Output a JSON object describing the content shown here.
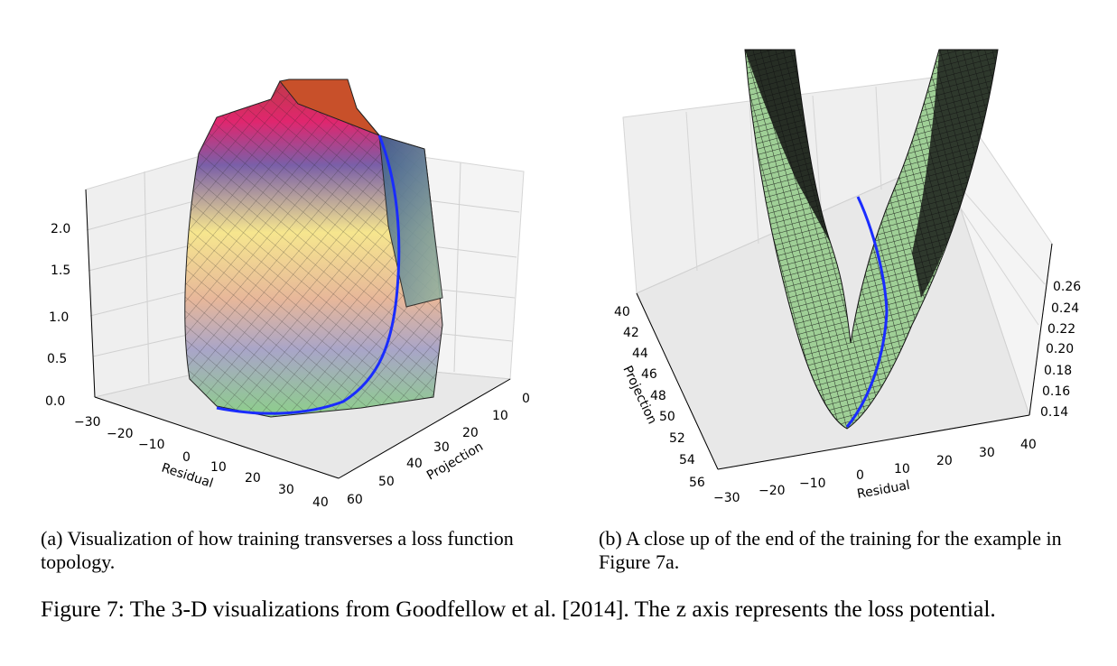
{
  "panel_a": {
    "z_ticks": [
      "0.0",
      "0.5",
      "1.0",
      "1.5",
      "2.0"
    ],
    "residual_ticks": [
      "−30",
      "−20",
      "−10",
      "0",
      "10",
      "20",
      "30",
      "40"
    ],
    "projection_ticks": [
      "0",
      "10",
      "20",
      "30",
      "40",
      "50",
      "60"
    ],
    "residual_label": "Residual",
    "projection_label": "Projection"
  },
  "panel_b": {
    "z_ticks": [
      "0.14",
      "0.16",
      "0.18",
      "0.20",
      "0.22",
      "0.24",
      "0.26"
    ],
    "residual_ticks": [
      "−30",
      "−20",
      "−10",
      "0",
      "10",
      "20",
      "30",
      "40"
    ],
    "projection_ticks": [
      "40",
      "42",
      "44",
      "46",
      "48",
      "50",
      "52",
      "54",
      "56"
    ],
    "residual_label": "Residual",
    "projection_label": "Projection"
  },
  "captions": {
    "a": "(a) Visualization of how training transverses a loss function topology.",
    "b": "(b) A close up of the end of the training for the example in Figure 7a.",
    "figure": "Figure 7: The 3-D visualizations from Goodfellow et al. [2014]. The z axis represents the loss potential."
  },
  "colors": {
    "trajectory": "#1a2cff",
    "surface_b": "#9fcf96",
    "pane": "#f2f2f2"
  }
}
